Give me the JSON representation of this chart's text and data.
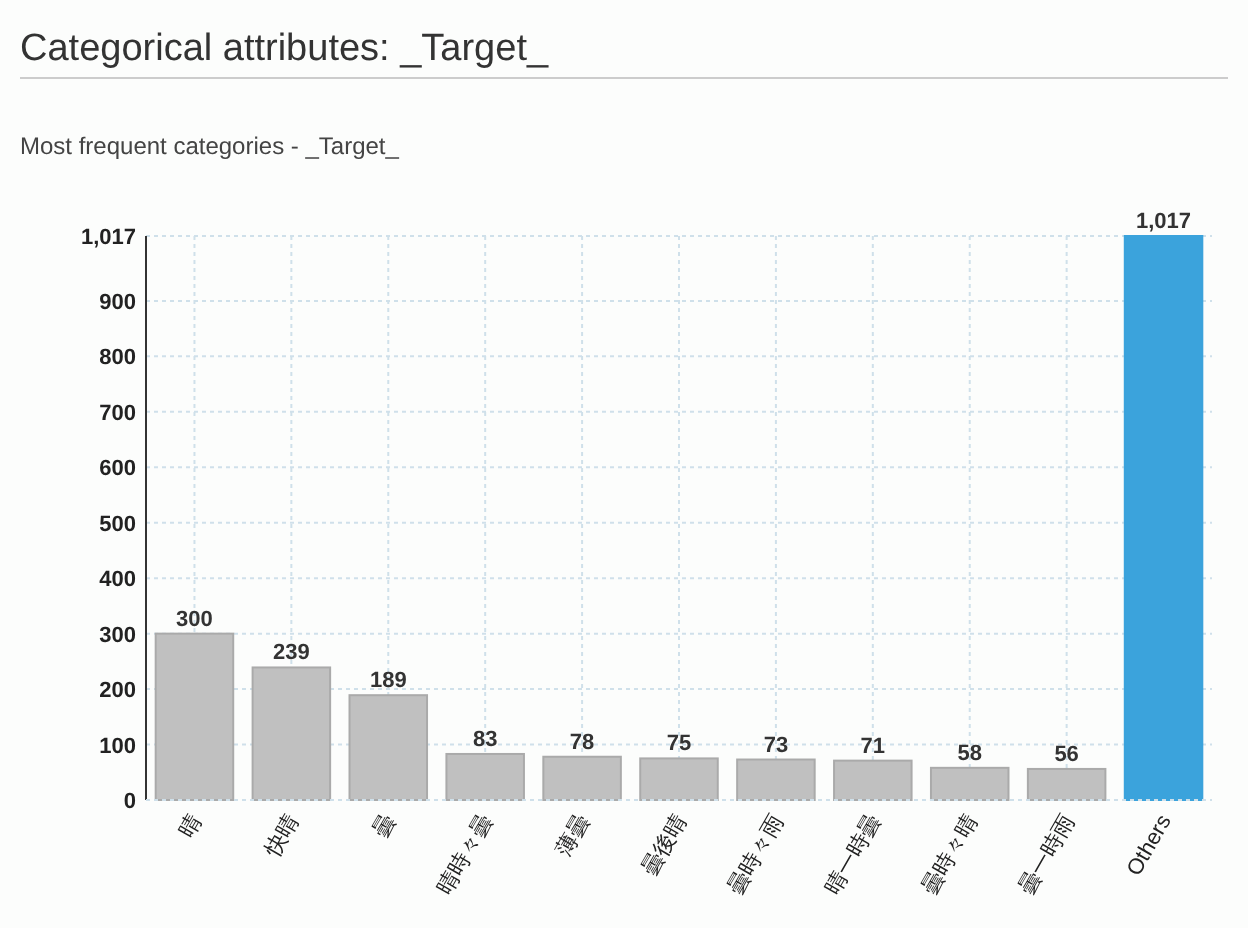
{
  "chart_data": {
    "type": "bar",
    "title": "Categorical attributes: _Target_",
    "subtitle": "Most frequent categories - _Target_",
    "categories": [
      "晴",
      "快晴",
      "曇",
      "晴時々曇",
      "薄曇",
      "曇後晴",
      "曇時々雨",
      "晴一時曇",
      "曇時々晴",
      "曇一時雨",
      "Others"
    ],
    "values": [
      300,
      239,
      189,
      83,
      78,
      75,
      73,
      71,
      58,
      56,
      1017
    ],
    "colors": [
      "#c0c0c0",
      "#c0c0c0",
      "#c0c0c0",
      "#c0c0c0",
      "#c0c0c0",
      "#c0c0c0",
      "#c0c0c0",
      "#c0c0c0",
      "#c0c0c0",
      "#c0c0c0",
      "#3ba3dc"
    ],
    "ylim": [
      0,
      1017
    ],
    "yticks": [
      0,
      100,
      200,
      300,
      400,
      500,
      600,
      700,
      800,
      900,
      {
        "value": 1017,
        "label": "1,017"
      }
    ],
    "value_labels": [
      "300",
      "239",
      "189",
      "83",
      "78",
      "75",
      "73",
      "71",
      "58",
      "56",
      "1,017"
    ],
    "grid": true
  }
}
